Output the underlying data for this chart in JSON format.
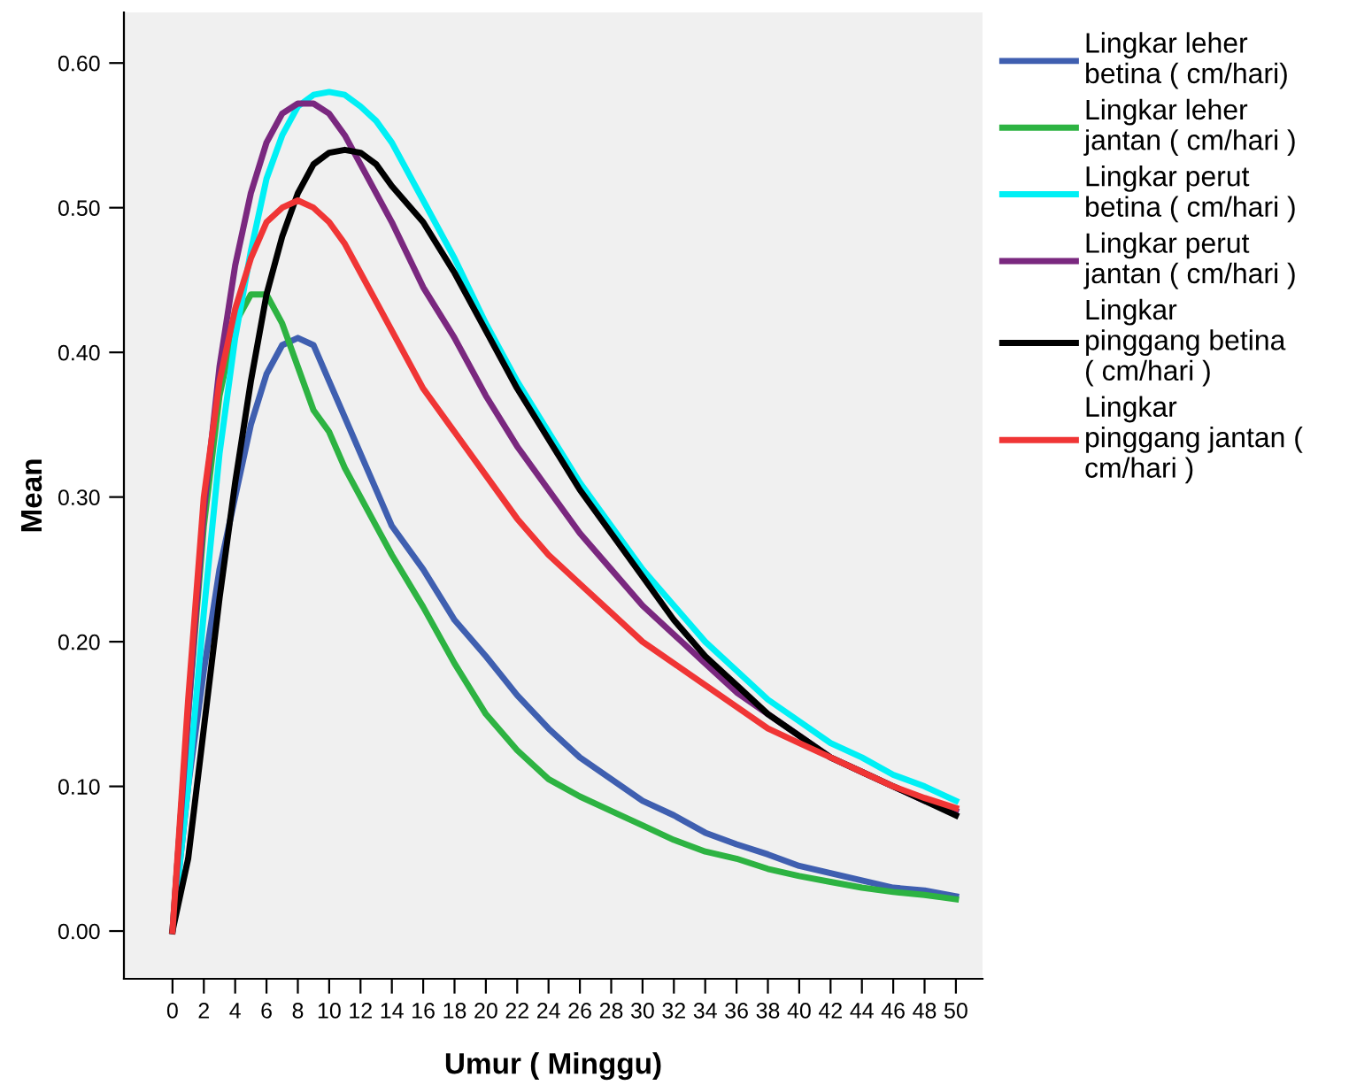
{
  "chart_data": {
    "type": "line",
    "xlabel": "Umur ( Minggu)",
    "ylabel": "Mean",
    "x": [
      0,
      1,
      2,
      3,
      4,
      5,
      6,
      7,
      8,
      9,
      10,
      11,
      12,
      13,
      14,
      16,
      18,
      20,
      22,
      24,
      26,
      28,
      30,
      32,
      34,
      36,
      38,
      40,
      42,
      44,
      46,
      48,
      50
    ],
    "xlim": [
      -3.1,
      51.7
    ],
    "xticks": [
      0,
      2,
      4,
      6,
      8,
      10,
      12,
      14,
      16,
      18,
      20,
      22,
      24,
      26,
      28,
      30,
      32,
      34,
      36,
      38,
      40,
      42,
      44,
      46,
      48,
      50
    ],
    "ylim": [
      -0.033,
      0.635
    ],
    "yticks": [
      {
        "value": 0,
        "label": "0.00"
      },
      {
        "value": 0.1,
        "label": "0.10"
      },
      {
        "value": 0.2,
        "label": "0.20"
      },
      {
        "value": 0.3,
        "label": "0.30"
      },
      {
        "value": 0.4,
        "label": "0.40"
      },
      {
        "value": 0.5,
        "label": "0.50"
      },
      {
        "value": 0.6,
        "label": "0.60"
      }
    ],
    "grid": false,
    "legend": "right",
    "marker": "none",
    "line_style": "solid",
    "series": [
      {
        "name": "Lingkar leher\nbetina ( cm/hari)",
        "color": "#3f5fb0",
        "values": [
          0,
          0.1,
          0.18,
          0.25,
          0.3,
          0.35,
          0.385,
          0.405,
          0.41,
          0.405,
          0.38,
          0.355,
          0.33,
          0.305,
          0.28,
          0.25,
          0.215,
          0.19,
          0.163,
          0.14,
          0.12,
          0.105,
          0.09,
          0.08,
          0.068,
          0.06,
          0.053,
          0.045,
          0.04,
          0.035,
          0.03,
          0.028,
          0.024
        ]
      },
      {
        "name": "Lingkar leher\njantan ( cm/hari )",
        "color": "#2db342",
        "values": [
          0,
          0.15,
          0.28,
          0.37,
          0.42,
          0.44,
          0.44,
          0.42,
          0.39,
          0.36,
          0.345,
          0.32,
          0.3,
          0.28,
          0.26,
          0.224,
          0.185,
          0.15,
          0.125,
          0.105,
          0.093,
          0.083,
          0.073,
          0.063,
          0.055,
          0.05,
          0.043,
          0.038,
          0.034,
          0.03,
          0.027,
          0.025,
          0.022
        ]
      },
      {
        "name": "Lingkar perut\nbetina ( cm/hari )",
        "color": "#00f0f5",
        "values": [
          0,
          0.1,
          0.22,
          0.33,
          0.41,
          0.47,
          0.52,
          0.55,
          0.57,
          0.578,
          0.58,
          0.578,
          0.57,
          0.56,
          0.545,
          0.505,
          0.465,
          0.42,
          0.38,
          0.345,
          0.31,
          0.28,
          0.25,
          0.225,
          0.2,
          0.18,
          0.16,
          0.145,
          0.13,
          0.12,
          0.108,
          0.1,
          0.09
        ]
      },
      {
        "name": "Lingkar perut\njantan ( cm/hari )",
        "color": "#7a287f",
        "values": [
          0,
          0.15,
          0.29,
          0.39,
          0.46,
          0.51,
          0.545,
          0.565,
          0.572,
          0.572,
          0.565,
          0.55,
          0.53,
          0.51,
          0.49,
          0.445,
          0.41,
          0.37,
          0.335,
          0.305,
          0.275,
          0.25,
          0.225,
          0.205,
          0.185,
          0.165,
          0.15,
          0.135,
          0.12,
          0.11,
          0.1,
          0.09,
          0.083
        ]
      },
      {
        "name": "Lingkar\npinggang betina\n( cm/hari )",
        "color": "#000000",
        "values": [
          0,
          0.05,
          0.14,
          0.23,
          0.31,
          0.38,
          0.44,
          0.48,
          0.51,
          0.53,
          0.538,
          0.54,
          0.538,
          0.53,
          0.515,
          0.49,
          0.455,
          0.415,
          0.375,
          0.34,
          0.305,
          0.275,
          0.245,
          0.215,
          0.19,
          0.17,
          0.15,
          0.135,
          0.12,
          0.11,
          0.1,
          0.09,
          0.08
        ]
      },
      {
        "name": "Lingkar\npinggang jantan (\ncm/hari )",
        "color": "#f03535",
        "values": [
          0,
          0.16,
          0.3,
          0.38,
          0.43,
          0.465,
          0.49,
          0.5,
          0.505,
          0.5,
          0.49,
          0.475,
          0.455,
          0.435,
          0.415,
          0.375,
          0.345,
          0.315,
          0.285,
          0.26,
          0.24,
          0.22,
          0.2,
          0.185,
          0.17,
          0.155,
          0.14,
          0.13,
          0.12,
          0.11,
          0.1,
          0.092,
          0.085
        ]
      }
    ]
  }
}
